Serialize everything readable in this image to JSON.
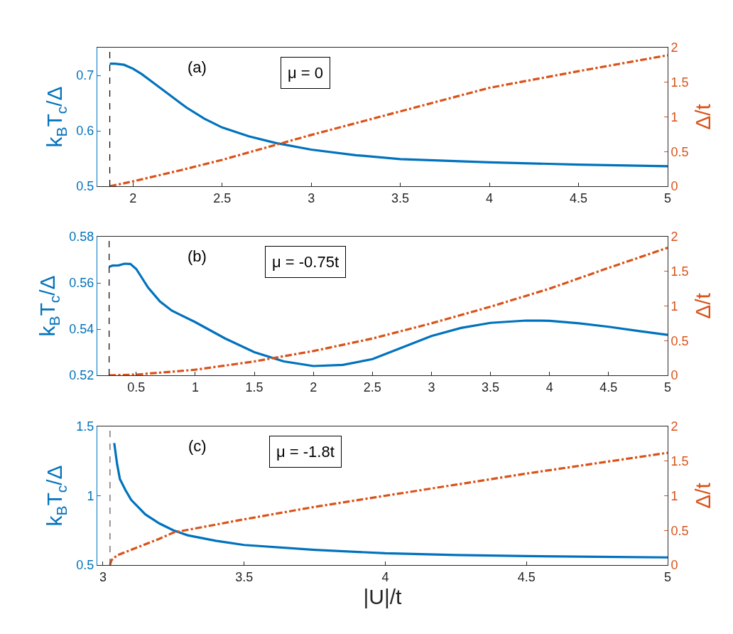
{
  "chart_data": [
    {
      "type": "line",
      "ylabel": "k$_{B}$T$_{c}$/Δ",
      "y2label": "Δ/t",
      "annotations": [
        "(a)",
        "μ = 0"
      ],
      "xlim": [
        1.8,
        5
      ],
      "xticks": [
        2,
        2.5,
        3,
        3.5,
        4,
        4.5,
        5
      ],
      "ylim": [
        0.5,
        0.75
      ],
      "yticks": [
        0.5,
        0.6,
        0.7
      ],
      "y2lim": [
        0,
        2
      ],
      "y2ticks": [
        0,
        0.5,
        1,
        1.5,
        2
      ],
      "ref_lines": [
        {
          "axis": "x",
          "value": 1.87,
          "color": "#000000",
          "line_style": "dashed"
        }
      ],
      "series": [
        {
          "color": "#0072bd",
          "line_style": "solid",
          "x": [
            1.87,
            1.9,
            1.95,
            2,
            2.05,
            2.1,
            2.2,
            2.3,
            2.4,
            2.5,
            2.65,
            2.8,
            3,
            3.25,
            3.5,
            3.75,
            4,
            4.5,
            5
          ],
          "values": [
            0.721,
            0.721,
            0.719,
            0.712,
            0.702,
            0.69,
            0.666,
            0.642,
            0.622,
            0.606,
            0.59,
            0.578,
            0.566,
            0.556,
            0.549,
            0.546,
            0.543,
            0.539,
            0.536
          ]
        },
        {
          "color": "#d95319",
          "line_style": "dashdot",
          "axis": "y2",
          "x": [
            1.87,
            2,
            2.25,
            2.5,
            2.75,
            3,
            3.5,
            4,
            4.5,
            5
          ],
          "values": [
            0,
            0.07,
            0.22,
            0.38,
            0.56,
            0.74,
            1.08,
            1.42,
            1.66,
            1.89
          ]
        }
      ]
    },
    {
      "type": "line",
      "ylabel": "k$_{B}$T$_{c}$/Δ",
      "y2label": "Δ/t",
      "annotations": [
        "(b)",
        "μ = -0.75t"
      ],
      "xlim": [
        0.17,
        5
      ],
      "xticks": [
        0.5,
        1,
        1.5,
        2,
        2.5,
        3,
        3.5,
        4,
        4.5,
        5
      ],
      "ylim": [
        0.52,
        0.58
      ],
      "yticks": [
        0.52,
        0.54,
        0.56,
        0.58
      ],
      "y2lim": [
        0,
        2
      ],
      "y2ticks": [
        0,
        0.5,
        1,
        1.5,
        2
      ],
      "ref_lines": [
        {
          "axis": "x",
          "value": 0.27,
          "color": "#000000",
          "line_style": "dashed"
        }
      ],
      "series": [
        {
          "color": "#0072bd",
          "line_style": "solid",
          "x": [
            0.27,
            0.3,
            0.35,
            0.4,
            0.45,
            0.5,
            0.55,
            0.6,
            0.7,
            0.8,
            1,
            1.25,
            1.5,
            1.75,
            2,
            2.25,
            2.5,
            2.75,
            3,
            3.25,
            3.5,
            3.8,
            4,
            4.25,
            4.5,
            4.75,
            5
          ],
          "values": [
            0.567,
            0.5675,
            0.5676,
            0.5683,
            0.5682,
            0.566,
            0.562,
            0.558,
            0.552,
            0.548,
            0.543,
            0.536,
            0.53,
            0.526,
            0.524,
            0.5245,
            0.527,
            0.532,
            0.537,
            0.5405,
            0.5427,
            0.5437,
            0.5436,
            0.5425,
            0.541,
            0.5392,
            0.5375
          ]
        },
        {
          "color": "#d95319",
          "line_style": "dashdot",
          "axis": "y2",
          "x": [
            0.27,
            0.5,
            1,
            1.5,
            1.63,
            2,
            2.5,
            3,
            3.5,
            4,
            4.5,
            5
          ],
          "values": [
            0,
            0.01,
            0.08,
            0.2,
            0.24,
            0.35,
            0.53,
            0.75,
            0.99,
            1.25,
            1.55,
            1.84
          ]
        }
      ]
    },
    {
      "type": "line",
      "xlabel": "|U|/t",
      "ylabel": "k$_{B}$T$_{c}$/Δ",
      "y2label": "Δ/t",
      "annotations": [
        "(c)",
        "μ = -1.8t"
      ],
      "xlim": [
        2.98,
        5
      ],
      "xticks": [
        3,
        3.5,
        4,
        4.5,
        5
      ],
      "ylim": [
        0.5,
        1.5
      ],
      "yticks": [
        0.5,
        1,
        1.5
      ],
      "y2lim": [
        0,
        2
      ],
      "y2ticks": [
        0,
        0.5,
        1,
        1.5,
        2
      ],
      "ref_lines": [
        {
          "axis": "x",
          "value": 3.025,
          "color": "#555555",
          "line_style": "dashed"
        }
      ],
      "series": [
        {
          "color": "#0072bd",
          "line_style": "solid",
          "x": [
            3.04,
            3.05,
            3.06,
            3.08,
            3.1,
            3.15,
            3.2,
            3.25,
            3.3,
            3.4,
            3.5,
            3.75,
            4,
            4.25,
            4.5,
            4.75,
            5
          ],
          "values": [
            1.38,
            1.23,
            1.12,
            1.04,
            0.97,
            0.866,
            0.8,
            0.75,
            0.715,
            0.675,
            0.645,
            0.61,
            0.585,
            0.572,
            0.565,
            0.56,
            0.555
          ]
        },
        {
          "color": "#d95319",
          "line_style": "dashdot",
          "axis": "y2",
          "x": [
            3.025,
            3.03,
            3.05,
            3.1,
            3.2,
            3.25,
            3.5,
            3.75,
            4,
            4.25,
            4.5,
            4.75,
            5
          ],
          "values": [
            0,
            0.07,
            0.14,
            0.22,
            0.38,
            0.47,
            0.66,
            0.84,
            1.0,
            1.16,
            1.32,
            1.47,
            1.62
          ]
        }
      ]
    }
  ]
}
